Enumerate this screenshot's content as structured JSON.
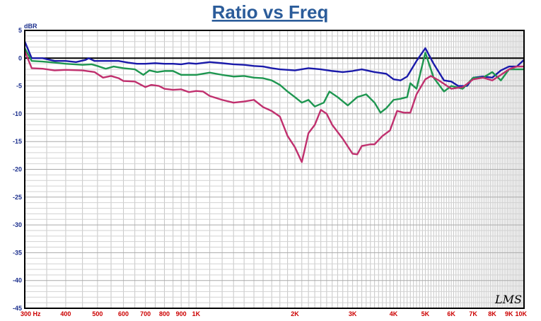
{
  "chart_data": {
    "type": "line",
    "title": "Ratio vs Freq",
    "ylabel": "dBR",
    "xlabel": "",
    "xscale": "log",
    "xlim": [
      300,
      10000
    ],
    "ylim": [
      -45,
      5
    ],
    "grid": true,
    "x_ticks": [
      {
        "value": 300,
        "label": "300 Hz"
      },
      {
        "value": 400,
        "label": "400"
      },
      {
        "value": 500,
        "label": "500"
      },
      {
        "value": 600,
        "label": "600"
      },
      {
        "value": 700,
        "label": "700"
      },
      {
        "value": 800,
        "label": "800"
      },
      {
        "value": 900,
        "label": "900"
      },
      {
        "value": 1000,
        "label": "1K"
      },
      {
        "value": 2000,
        "label": "2K"
      },
      {
        "value": 3000,
        "label": "3K"
      },
      {
        "value": 4000,
        "label": "4K"
      },
      {
        "value": 5000,
        "label": "5K"
      },
      {
        "value": 6000,
        "label": "6K"
      },
      {
        "value": 7000,
        "label": "7K"
      },
      {
        "value": 8000,
        "label": "8K"
      },
      {
        "value": 9000,
        "label": "9K"
      },
      {
        "value": 10000,
        "label": "10K"
      }
    ],
    "y_ticks": [
      5,
      0,
      -5,
      -10,
      -15,
      -20,
      -25,
      -30,
      -35,
      -40,
      -45
    ],
    "reference_line": 0,
    "series": [
      {
        "color": "#1a1aaa",
        "points": [
          [
            300,
            3
          ],
          [
            315,
            0
          ],
          [
            340,
            0
          ],
          [
            370,
            -0.5
          ],
          [
            400,
            -0.5
          ],
          [
            430,
            -0.7
          ],
          [
            460,
            -0.3
          ],
          [
            470,
            0
          ],
          [
            490,
            -0.5
          ],
          [
            520,
            -0.5
          ],
          [
            580,
            -0.5
          ],
          [
            620,
            -0.8
          ],
          [
            660,
            -1.0
          ],
          [
            700,
            -1.0
          ],
          [
            750,
            -0.9
          ],
          [
            800,
            -1.0
          ],
          [
            850,
            -1.0
          ],
          [
            900,
            -1.1
          ],
          [
            950,
            -0.9
          ],
          [
            1000,
            -1.0
          ],
          [
            1100,
            -0.7
          ],
          [
            1200,
            -0.9
          ],
          [
            1300,
            -1.1
          ],
          [
            1400,
            -1.2
          ],
          [
            1500,
            -1.4
          ],
          [
            1600,
            -1.5
          ],
          [
            1700,
            -1.8
          ],
          [
            1800,
            -2.0
          ],
          [
            1900,
            -2.1
          ],
          [
            2000,
            -2.2
          ],
          [
            2200,
            -1.8
          ],
          [
            2400,
            -2.0
          ],
          [
            2600,
            -2.3
          ],
          [
            2800,
            -2.5
          ],
          [
            3000,
            -2.3
          ],
          [
            3200,
            -2.0
          ],
          [
            3500,
            -2.5
          ],
          [
            3800,
            -2.8
          ],
          [
            4000,
            -3.8
          ],
          [
            4200,
            -4.0
          ],
          [
            4400,
            -3.3
          ],
          [
            4700,
            -0.5
          ],
          [
            5000,
            1.8
          ],
          [
            5300,
            -1.0
          ],
          [
            5700,
            -4.0
          ],
          [
            6000,
            -4.2
          ],
          [
            6300,
            -5.0
          ],
          [
            6700,
            -5.0
          ],
          [
            7000,
            -3.5
          ],
          [
            7500,
            -3.3
          ],
          [
            8000,
            -3.5
          ],
          [
            8500,
            -2.2
          ],
          [
            9000,
            -1.5
          ],
          [
            9500,
            -1.5
          ],
          [
            10000,
            -0.3
          ]
        ]
      },
      {
        "color": "#1e9650",
        "points": [
          [
            300,
            1.8
          ],
          [
            315,
            -0.5
          ],
          [
            340,
            -0.6
          ],
          [
            370,
            -0.8
          ],
          [
            400,
            -1.0
          ],
          [
            450,
            -1.2
          ],
          [
            480,
            -1.1
          ],
          [
            500,
            -1.4
          ],
          [
            530,
            -1.9
          ],
          [
            560,
            -1.5
          ],
          [
            600,
            -1.8
          ],
          [
            650,
            -2.0
          ],
          [
            690,
            -3.0
          ],
          [
            720,
            -2.2
          ],
          [
            760,
            -2.5
          ],
          [
            800,
            -2.3
          ],
          [
            850,
            -2.3
          ],
          [
            900,
            -3.0
          ],
          [
            950,
            -3.0
          ],
          [
            1000,
            -3.0
          ],
          [
            1100,
            -2.6
          ],
          [
            1200,
            -3.0
          ],
          [
            1300,
            -3.3
          ],
          [
            1400,
            -3.2
          ],
          [
            1500,
            -3.5
          ],
          [
            1600,
            -3.6
          ],
          [
            1700,
            -4.0
          ],
          [
            1800,
            -4.8
          ],
          [
            1900,
            -6.0
          ],
          [
            2000,
            -7.0
          ],
          [
            2100,
            -8.0
          ],
          [
            2200,
            -7.5
          ],
          [
            2300,
            -8.7
          ],
          [
            2450,
            -8.0
          ],
          [
            2550,
            -6.0
          ],
          [
            2700,
            -7.0
          ],
          [
            2900,
            -8.5
          ],
          [
            3100,
            -7.0
          ],
          [
            3300,
            -6.5
          ],
          [
            3500,
            -8.0
          ],
          [
            3650,
            -9.8
          ],
          [
            3800,
            -9.0
          ],
          [
            4000,
            -7.5
          ],
          [
            4200,
            -7.3
          ],
          [
            4400,
            -7.0
          ],
          [
            4500,
            -4.5
          ],
          [
            4700,
            -5.5
          ],
          [
            5000,
            1.0
          ],
          [
            5300,
            -3.5
          ],
          [
            5700,
            -6.0
          ],
          [
            6000,
            -5.0
          ],
          [
            6500,
            -5.5
          ],
          [
            7000,
            -3.5
          ],
          [
            7500,
            -3.5
          ],
          [
            8000,
            -2.5
          ],
          [
            8500,
            -4.0
          ],
          [
            9000,
            -2.0
          ],
          [
            9500,
            -2.0
          ],
          [
            10000,
            -2.0
          ]
        ]
      },
      {
        "color": "#c0306e",
        "points": [
          [
            300,
            1.3
          ],
          [
            315,
            -1.8
          ],
          [
            340,
            -1.9
          ],
          [
            370,
            -2.2
          ],
          [
            400,
            -2.1
          ],
          [
            450,
            -2.2
          ],
          [
            490,
            -2.5
          ],
          [
            520,
            -3.5
          ],
          [
            550,
            -3.2
          ],
          [
            580,
            -3.6
          ],
          [
            600,
            -4.1
          ],
          [
            650,
            -4.2
          ],
          [
            700,
            -5.2
          ],
          [
            730,
            -4.8
          ],
          [
            770,
            -5.0
          ],
          [
            800,
            -5.5
          ],
          [
            850,
            -5.7
          ],
          [
            900,
            -5.6
          ],
          [
            950,
            -6.1
          ],
          [
            1000,
            -5.9
          ],
          [
            1050,
            -6.0
          ],
          [
            1100,
            -6.8
          ],
          [
            1200,
            -7.5
          ],
          [
            1300,
            -8.0
          ],
          [
            1400,
            -7.8
          ],
          [
            1500,
            -7.5
          ],
          [
            1600,
            -8.8
          ],
          [
            1700,
            -9.5
          ],
          [
            1800,
            -10.5
          ],
          [
            1900,
            -14.0
          ],
          [
            2000,
            -16.0
          ],
          [
            2100,
            -18.7
          ],
          [
            2200,
            -13.5
          ],
          [
            2300,
            -12.0
          ],
          [
            2400,
            -9.3
          ],
          [
            2500,
            -10.0
          ],
          [
            2600,
            -12.0
          ],
          [
            2800,
            -14.5
          ],
          [
            3000,
            -17.2
          ],
          [
            3100,
            -17.3
          ],
          [
            3200,
            -15.8
          ],
          [
            3400,
            -15.5
          ],
          [
            3500,
            -15.5
          ],
          [
            3700,
            -14.0
          ],
          [
            3900,
            -13.0
          ],
          [
            4100,
            -9.5
          ],
          [
            4300,
            -9.8
          ],
          [
            4500,
            -9.8
          ],
          [
            4700,
            -6.5
          ],
          [
            5000,
            -3.8
          ],
          [
            5200,
            -3.2
          ],
          [
            5500,
            -4.0
          ],
          [
            6000,
            -5.5
          ],
          [
            6500,
            -5.2
          ],
          [
            7000,
            -3.8
          ],
          [
            7500,
            -3.5
          ],
          [
            8000,
            -4.0
          ],
          [
            8500,
            -3.0
          ],
          [
            9000,
            -2.0
          ],
          [
            9500,
            -1.5
          ],
          [
            10000,
            -1.5
          ]
        ]
      }
    ]
  },
  "watermark": "LMS"
}
